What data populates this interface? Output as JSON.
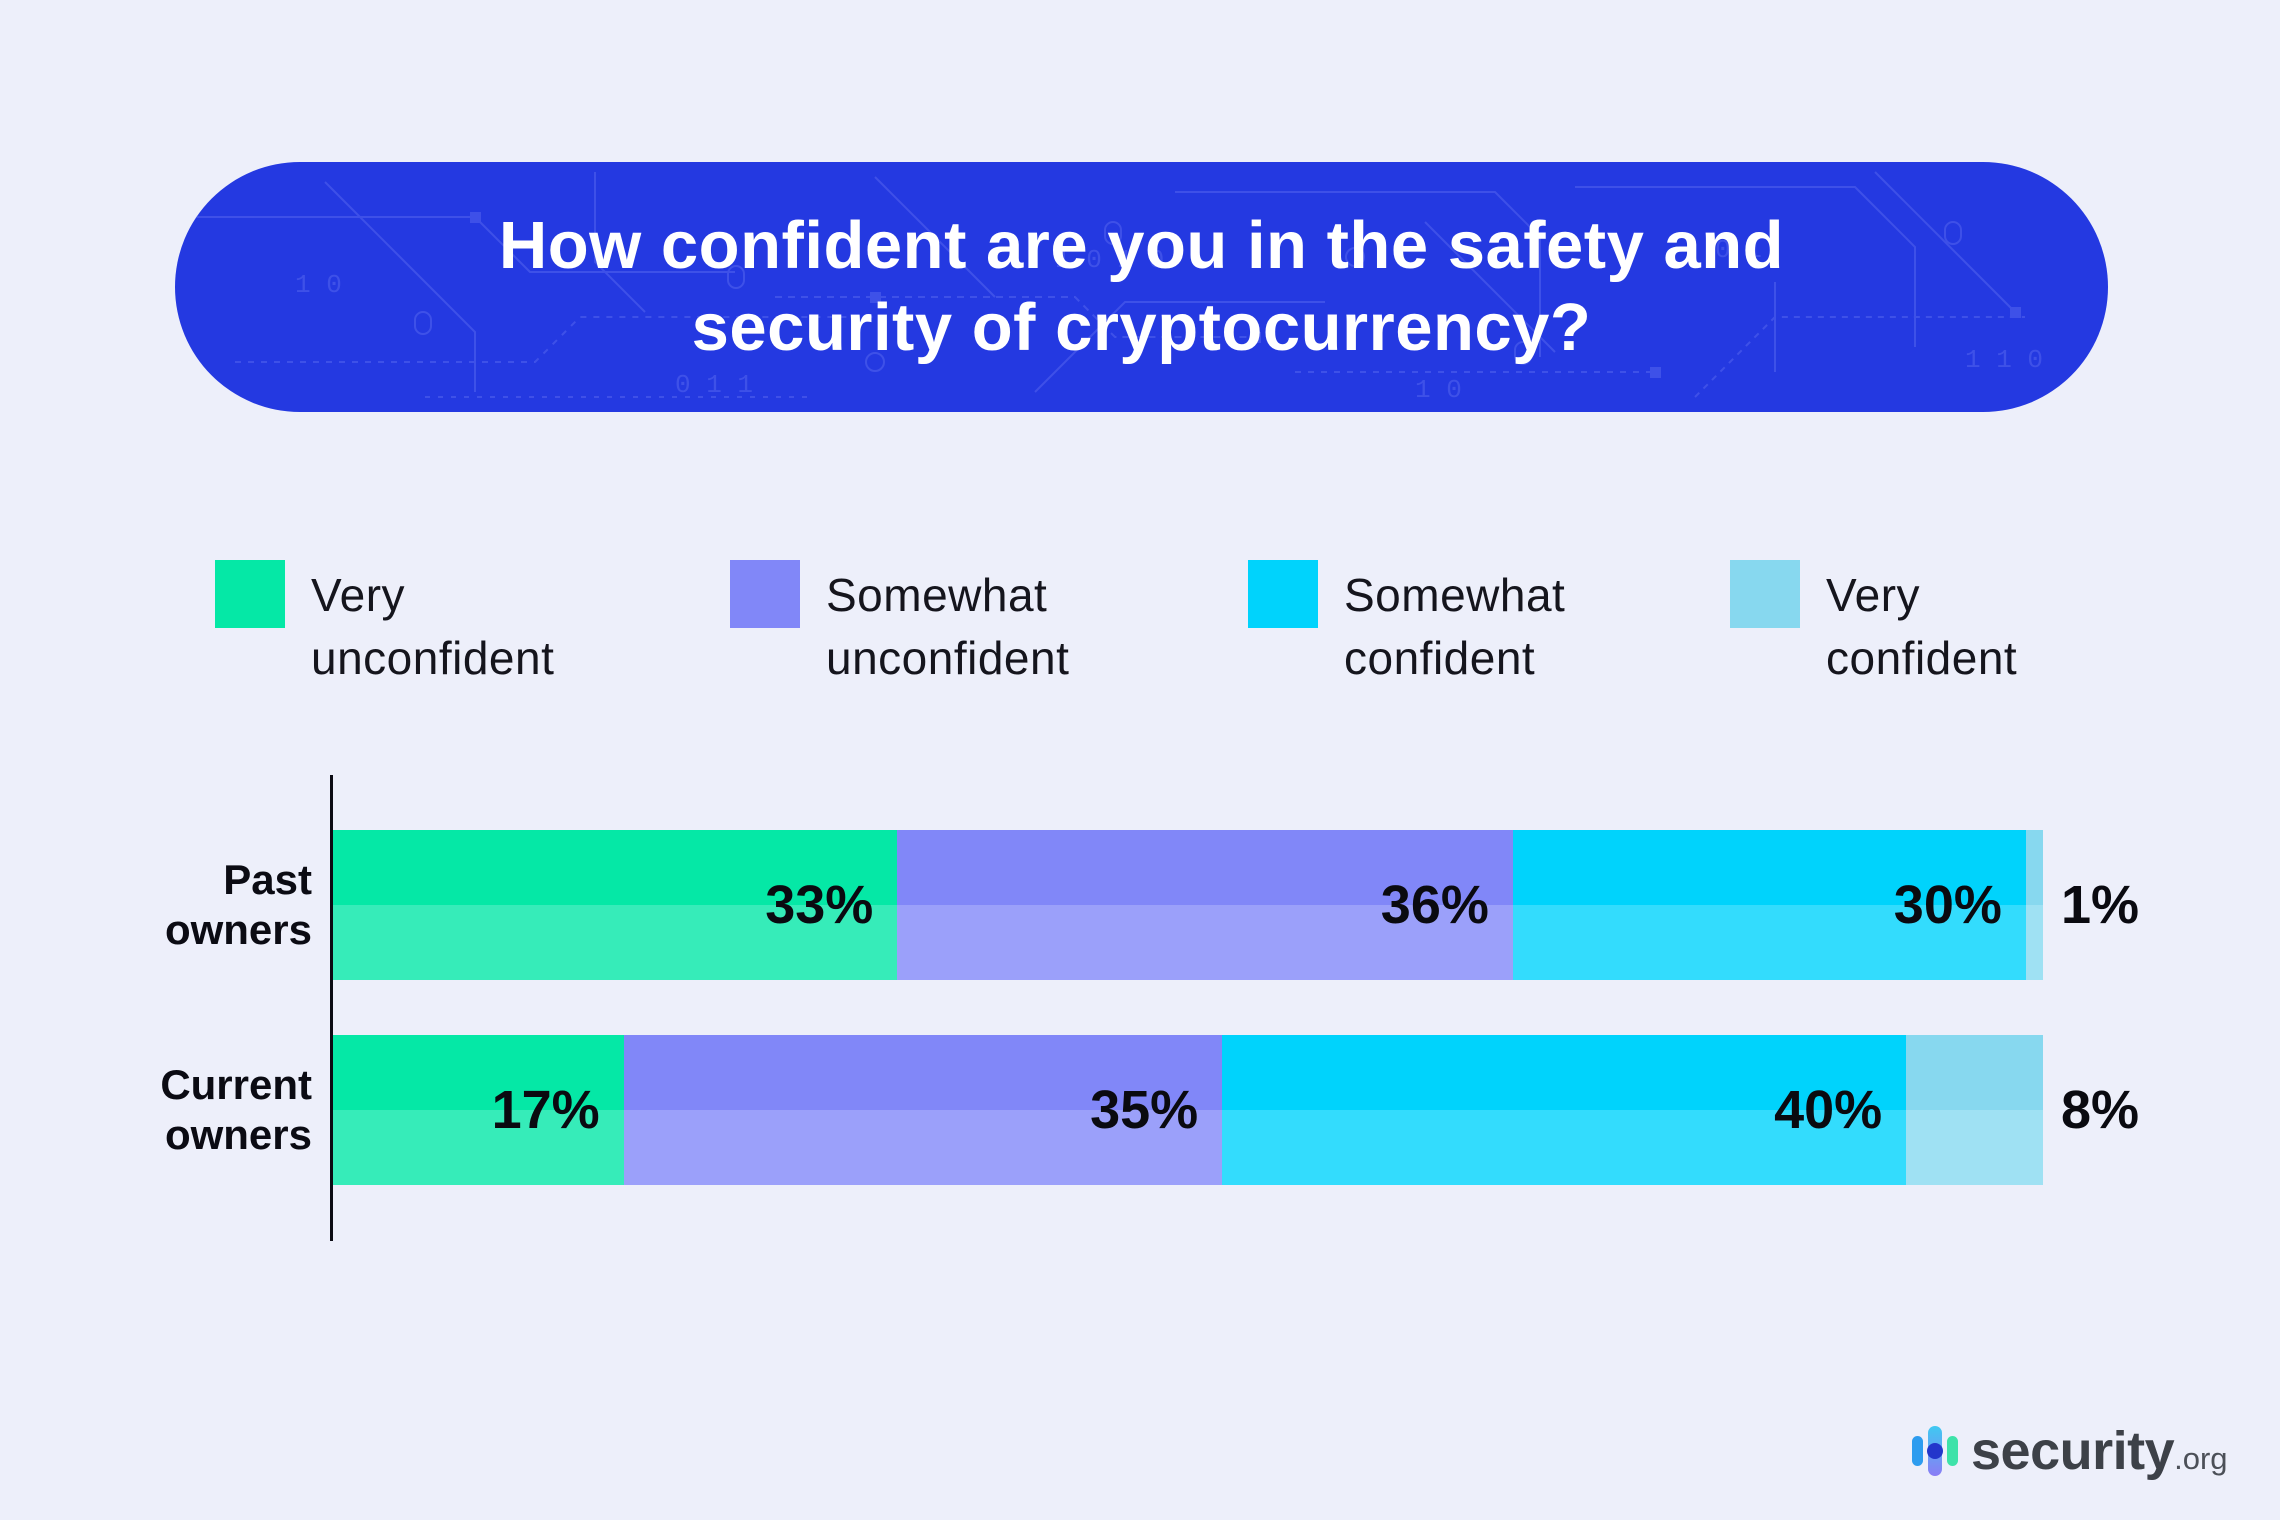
{
  "page": {
    "background": "#EDEFFA"
  },
  "header": {
    "title_line1": "How confident are you in the safety and",
    "title_line2": "security of cryptocurrency?",
    "background": "#2439E1",
    "text_color": "#FFFFFF"
  },
  "chart_data": {
    "type": "bar",
    "orientation": "horizontal_stacked",
    "title": "How confident are you in the safety and security of cryptocurrency?",
    "categories": [
      "Past owners",
      "Current owners"
    ],
    "series": [
      {
        "name": "Very unconfident",
        "color": "#05E8A6",
        "color_light": "#36ECB9",
        "values": [
          33,
          17
        ]
      },
      {
        "name": "Somewhat unconfident",
        "color": "#8187F8",
        "color_light": "#9BA0FA",
        "values": [
          36,
          35
        ]
      },
      {
        "name": "Somewhat confident",
        "color": "#00D3FC",
        "color_light": "#33DCFD",
        "values": [
          30,
          40
        ]
      },
      {
        "name": "Very confident",
        "color": "#87D8EF",
        "color_light": "#9FE1F3",
        "values": [
          1,
          8
        ]
      }
    ],
    "value_suffix": "%",
    "xlim": [
      0,
      100
    ],
    "grid": false,
    "legend_position": "top",
    "outside_label_threshold": 10,
    "data_labels": {
      "Past owners": [
        "33%",
        "36%",
        "30%",
        "1%"
      ],
      "Current owners": [
        "17%",
        "35%",
        "40%",
        "8%"
      ]
    }
  },
  "logo": {
    "brand": "security",
    "tld": ".org"
  }
}
